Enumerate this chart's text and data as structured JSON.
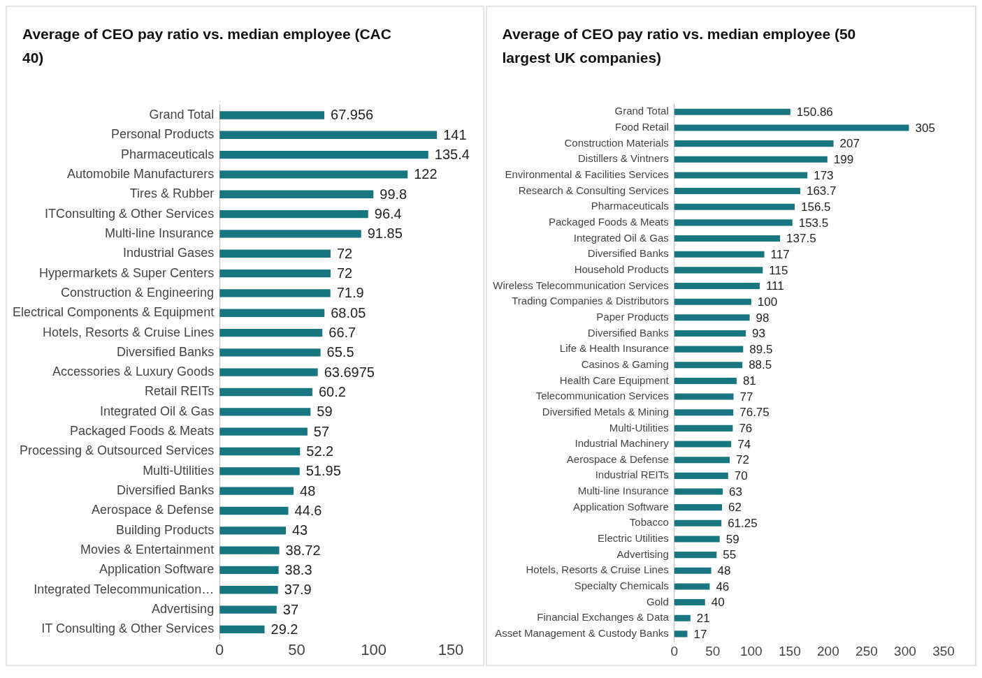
{
  "chart_data": [
    {
      "type": "bar",
      "orientation": "horizontal",
      "title": "Average of CEO pay ratio vs. median employee (CAC 40)",
      "categories": [
        "Grand Total",
        "Personal Products",
        "Pharmaceuticals",
        "Automobile Manufacturers",
        "Tires & Rubber",
        "ITConsulting & Other Services",
        "Multi-line Insurance",
        "Industrial Gases",
        "Hypermarkets & Super Centers",
        "Construction & Engineering",
        "Electrical Components & Equipment",
        "Hotels, Resorts & Cruise Lines",
        "Diversified Banks",
        "Accessories & Luxury Goods",
        "Retail REITs",
        "Integrated Oil & Gas",
        "Packaged Foods & Meats",
        "Processing & Outsourced Services",
        "Multi-Utilities",
        "Diversified Banks",
        "Aerospace & Defense",
        "Building Products",
        "Movies & Entertainment",
        "Application Software",
        "Integrated Telecommunication…",
        "Advertising",
        "IT Consulting & Other Services"
      ],
      "values": [
        67.956,
        141,
        135.4,
        122,
        99.8,
        96.4,
        91.85,
        72,
        72,
        71.9,
        68.05,
        66.7,
        65.5,
        63.6975,
        60.2,
        59,
        57,
        52.2,
        51.95,
        48,
        44.6,
        43,
        38.72,
        38.3,
        37.9,
        37,
        29.2
      ],
      "color": "#17767f",
      "xlim": [
        0,
        150
      ],
      "xticks": [
        0,
        50,
        100,
        150
      ],
      "grid": false,
      "legend": false,
      "data_labels": true
    },
    {
      "type": "bar",
      "orientation": "horizontal",
      "title": "Average of CEO pay ratio vs. median employee (50 largest UK companies)",
      "categories": [
        "Grand Total",
        "Food Retail",
        "Construction Materials",
        "Distillers & Vintners",
        "Environmental & Facilities Services",
        "Research & Consulting Services",
        "Pharmaceuticals",
        "Packaged Foods & Meats",
        "Integrated Oil & Gas",
        "Diversified Banks",
        "Household Products",
        "Wireless Telecommunication Services",
        "Trading Companies & Distributors",
        "Paper Products",
        "Diversified Banks",
        "Life & Health Insurance",
        "Casinos & Gaming",
        "Health Care Equipment",
        "Telecommunication Services",
        "Diversified Metals & Mining",
        "Multi-Utilities",
        "Industrial Machinery",
        "Aerospace & Defense",
        "Industrial REITs",
        "Multi-line Insurance",
        "Application Software",
        "Tobacco",
        "Electric Utilities",
        "Advertising",
        "Hotels, Resorts & Cruise Lines",
        "Specialty Chemicals",
        "Gold",
        "Financial Exchanges & Data",
        "Asset Management & Custody Banks"
      ],
      "values": [
        150.86,
        305,
        207,
        199,
        173,
        163.7,
        156.5,
        153.5,
        137.5,
        117,
        115,
        111,
        100,
        98,
        93,
        89.5,
        88.5,
        81,
        77,
        76.75,
        76,
        74,
        72,
        70,
        63,
        62,
        61.25,
        59,
        55,
        48,
        46,
        40,
        21,
        17
      ],
      "color": "#17767f",
      "xlim": [
        0,
        350
      ],
      "xticks": [
        0,
        50,
        100,
        150,
        200,
        250,
        300,
        350
      ],
      "grid": false,
      "legend": false,
      "data_labels": true
    }
  ]
}
